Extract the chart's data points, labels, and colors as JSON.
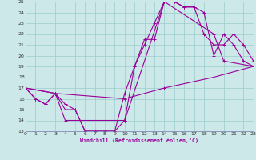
{
  "xlabel": "Windchill (Refroidissement éolien,°C)",
  "bg_color": "#cce8e8",
  "line_color": "#990099",
  "grid_color": "#99cccc",
  "spine_color": "#7777aa",
  "xmin": 0,
  "xmax": 23,
  "ymin": 13,
  "ymax": 25,
  "line1_x": [
    0,
    1,
    2,
    3,
    4,
    5,
    6,
    7,
    8,
    9,
    10,
    11,
    12,
    13,
    14,
    15,
    16,
    17,
    18,
    19,
    20,
    21,
    22,
    23
  ],
  "line1_y": [
    17,
    16,
    15.5,
    16.5,
    15,
    15,
    13,
    13,
    13,
    13,
    14,
    19,
    21,
    23,
    25,
    25,
    24.5,
    24.5,
    24,
    20,
    22,
    21,
    19.5,
    19
  ],
  "line2_x": [
    0,
    1,
    2,
    3,
    4,
    5,
    6,
    7,
    8,
    9,
    10,
    11,
    12,
    13,
    14,
    15,
    16,
    17,
    18,
    19,
    20,
    21,
    22,
    23
  ],
  "line2_y": [
    17,
    16,
    15.5,
    16.5,
    15.5,
    15,
    13,
    13,
    13,
    13,
    16.5,
    19,
    21.5,
    21.5,
    25,
    25,
    24.5,
    24.5,
    22,
    21,
    21,
    22,
    21,
    19.5
  ],
  "line3_x": [
    0,
    3,
    10,
    14,
    19,
    23
  ],
  "line3_y": [
    17,
    16.5,
    16,
    17,
    18,
    19
  ],
  "line4_x": [
    0,
    3,
    4,
    10,
    14,
    19,
    20,
    23
  ],
  "line4_y": [
    17,
    16.5,
    14,
    14,
    25,
    22,
    19.5,
    19
  ]
}
